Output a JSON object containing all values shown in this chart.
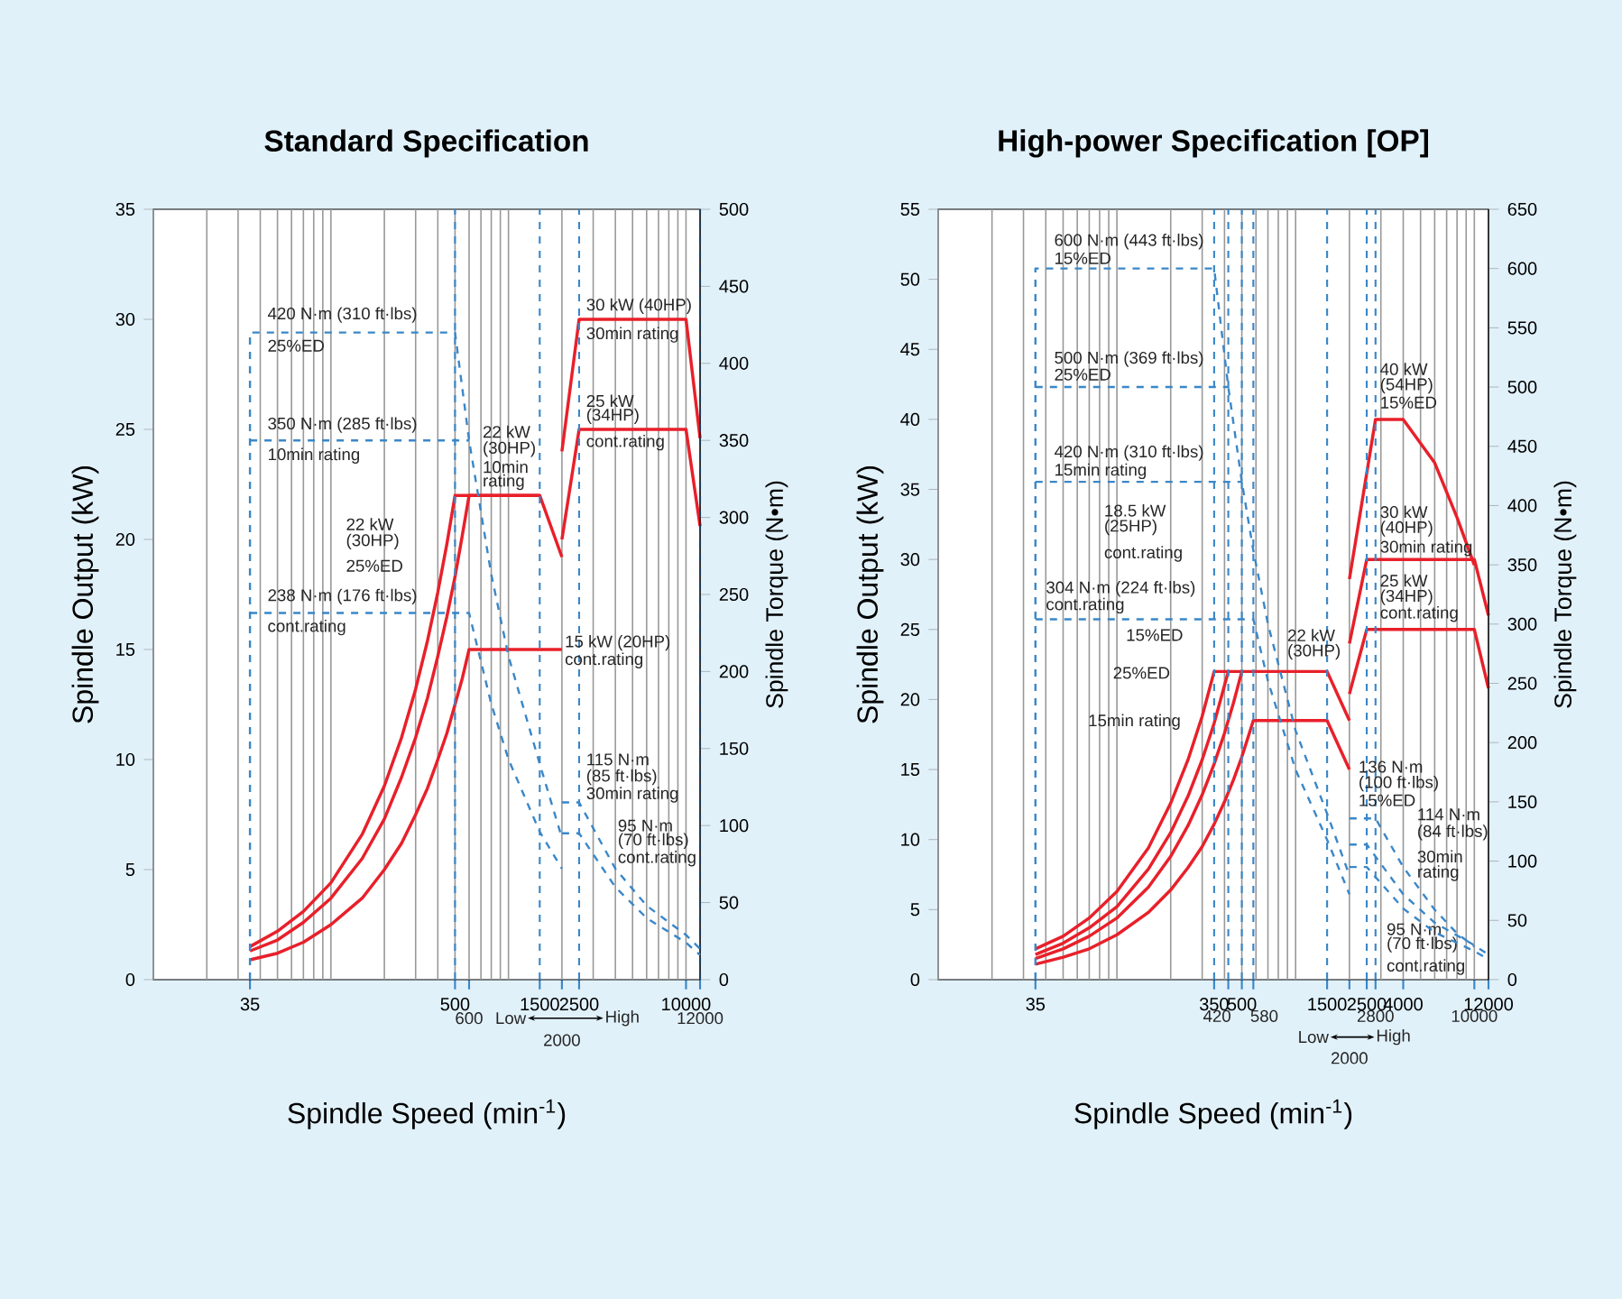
{
  "chart_data": [
    {
      "type": "line",
      "title": "Standard Specification",
      "xlabel": "Spindle Speed (min$^{-1}$)",
      "ylabel": "Spindle Output (kW)",
      "y2label": "Spindle Torque (N•m)",
      "log": "x",
      "grid": "x",
      "xlim": [
        10,
        12000
      ],
      "xticks": [
        35,
        500,
        {
          "value": 600,
          "label": null
        },
        1500,
        {
          "value": 2000,
          "label": null
        },
        2500,
        10000,
        {
          "value": 12000,
          "label": null
        }
      ],
      "ylim": [
        0,
        35
      ],
      "yticks": [
        0,
        5,
        10,
        15,
        20,
        25,
        30,
        35
      ],
      "y2lim": [
        0,
        500
      ],
      "y2ticks": [
        0,
        50,
        100,
        150,
        200,
        250,
        300,
        350,
        400,
        450,
        500
      ],
      "series": [
        {
          "color": "#e8202a",
          "x": [
            35,
            50,
            70,
            100,
            150,
            200,
            250,
            300,
            350,
            400,
            450,
            500,
            1500,
            2000
          ],
          "values": [
            1.5,
            2.2,
            3.1,
            4.4,
            6.6,
            8.8,
            11,
            13.2,
            15.4,
            17.6,
            19.8,
            22,
            22,
            19.2
          ]
        },
        {
          "color": "#e8202a",
          "x": [
            35,
            50,
            70,
            100,
            150,
            200,
            250,
            300,
            350,
            400,
            450,
            500,
            550,
            600,
            1500
          ],
          "values": [
            1.3,
            1.8,
            2.6,
            3.7,
            5.5,
            7.3,
            9.2,
            11,
            12.8,
            14.7,
            16.5,
            18.3,
            20.2,
            22,
            22
          ]
        },
        {
          "color": "#e8202a",
          "x": [
            35,
            50,
            70,
            100,
            150,
            200,
            250,
            300,
            350,
            400,
            450,
            500,
            550,
            600,
            2000
          ],
          "values": [
            0.9,
            1.2,
            1.7,
            2.5,
            3.7,
            5,
            6.2,
            7.5,
            8.7,
            10,
            11.2,
            12.5,
            13.7,
            15,
            15
          ]
        },
        {
          "color": "#e8202a",
          "x": [
            2000,
            2500,
            10000,
            12000
          ],
          "values": [
            24,
            30,
            30,
            24.6
          ]
        },
        {
          "color": "#e8202a",
          "x": [
            2000,
            2500,
            10000,
            12000
          ],
          "values": [
            20,
            25,
            25,
            20.6
          ]
        },
        {
          "color": "#3a87c8",
          "axis": "y2",
          "line_style": "dashed",
          "x": [
            35,
            35,
            500,
            600,
            800,
            1000,
            1500,
            2000
          ],
          "values": [
            0,
            420,
            420,
            350,
            263,
            210,
            140,
            92
          ]
        },
        {
          "color": "#3a87c8",
          "axis": "y2",
          "line_style": "dashed",
          "x": [
            35,
            600
          ],
          "values": [
            350,
            350
          ]
        },
        {
          "color": "#3a87c8",
          "axis": "y2",
          "line_style": "dashed",
          "x": [
            35,
            600,
            800,
            1000,
            1500,
            2000
          ],
          "values": [
            238,
            238,
            179,
            143,
            96,
            72
          ]
        },
        {
          "color": "#3a87c8",
          "axis": "y2",
          "line_style": "dashed",
          "x": [
            2000,
            2500,
            4000,
            6000,
            10000,
            12000
          ],
          "values": [
            115,
            115,
            72,
            48,
            29,
            20
          ]
        },
        {
          "color": "#3a87c8",
          "axis": "y2",
          "line_style": "dashed",
          "x": [
            2000,
            2500,
            4000,
            6000,
            10000,
            12000
          ],
          "values": [
            95,
            95,
            60,
            40,
            24,
            16
          ]
        }
      ],
      "ref_lines": [
        {
          "axis": "x",
          "value": 500,
          "color": "#3a87c8",
          "line_style": "dashed"
        },
        {
          "axis": "x",
          "value": 1500,
          "color": "#3a87c8",
          "line_style": "dashed"
        },
        {
          "axis": "x",
          "value": 2500,
          "color": "#3a87c8",
          "line_style": "dashed"
        },
        {
          "axis": "x",
          "value": 12000,
          "color": "#3a87c8",
          "line_style": "dashed"
        }
      ],
      "annotations": [
        "420 N·m (310 ft·lbs)",
        "25%ED",
        "350 N·m (285 ft·lbs)",
        "10min rating",
        "238 N·m (176 ft·lbs)",
        "cont.rating",
        "22 kW",
        "(30HP)",
        "25%ED",
        "22 kW",
        "(30HP)",
        "10min",
        "rating",
        "30 kW (40HP)",
        "30min rating",
        "25 kW",
        "(34HP)",
        "cont.rating",
        "15 kW (20HP)",
        "cont.rating",
        "115 N·m",
        "(85 ft·lbs)",
        "30min rating",
        "95 N·m",
        "(70 ft·lbs)",
        "cont.rating",
        "Low",
        "High",
        "600",
        "12000",
        "2000"
      ]
    },
    {
      "type": "line",
      "title": "High-power Specification [OP]",
      "xlabel": "Spindle Speed (min$^{-1}$)",
      "ylabel": "Spindle Output (kW)",
      "y2label": "Spindle Torque (N•m)",
      "log": "x",
      "grid": "x",
      "xlim": [
        10,
        12000
      ],
      "xticks": [
        35,
        350,
        {
          "value": 420,
          "label": null
        },
        500,
        {
          "value": 580,
          "label": null
        },
        1500,
        {
          "value": 2000,
          "label": null
        },
        2500,
        {
          "value": 2800,
          "label": null
        },
        4000,
        {
          "value": 10000,
          "label": null
        },
        12000
      ],
      "ylim": [
        0,
        55
      ],
      "yticks": [
        0,
        5,
        10,
        15,
        20,
        25,
        30,
        35,
        40,
        45,
        50,
        55
      ],
      "y2lim": [
        0,
        650
      ],
      "y2ticks": [
        0,
        50,
        100,
        150,
        200,
        250,
        300,
        350,
        400,
        450,
        500,
        550,
        600,
        650
      ],
      "series": [
        {
          "color": "#e8202a",
          "x": [
            35,
            50,
            70,
            100,
            150,
            200,
            250,
            300,
            350,
            1500,
            2000
          ],
          "values": [
            2.2,
            3.1,
            4.4,
            6.3,
            9.4,
            12.6,
            15.7,
            18.8,
            22,
            22,
            18.5
          ]
        },
        {
          "color": "#e8202a",
          "x": [
            35,
            50,
            70,
            100,
            150,
            200,
            250,
            300,
            350,
            420
          ],
          "values": [
            1.8,
            2.6,
            3.7,
            5.2,
            7.9,
            10.5,
            13.1,
            15.7,
            18.3,
            22
          ]
        },
        {
          "color": "#e8202a",
          "x": [
            35,
            50,
            70,
            100,
            150,
            200,
            250,
            300,
            350,
            400,
            450,
            500
          ],
          "values": [
            1.5,
            2.2,
            3.1,
            4.4,
            6.6,
            8.8,
            11,
            13.2,
            15.4,
            17.6,
            19.8,
            22
          ]
        },
        {
          "color": "#e8202a",
          "x": [
            35,
            50,
            70,
            100,
            150,
            200,
            250,
            300,
            350,
            400,
            450,
            500,
            580,
            1500,
            2000
          ],
          "values": [
            1.1,
            1.6,
            2.2,
            3.2,
            4.8,
            6.4,
            8,
            9.5,
            11.1,
            12.7,
            14.3,
            15.9,
            18.5,
            18.5,
            15
          ]
        },
        {
          "color": "#e8202a",
          "x": [
            2000,
            2800,
            4000,
            6000,
            8000,
            10000
          ],
          "values": [
            28.6,
            40,
            40,
            36.9,
            33,
            29.6
          ]
        },
        {
          "color": "#e8202a",
          "x": [
            2000,
            2500,
            10000,
            12000
          ],
          "values": [
            24,
            30,
            30,
            26
          ]
        },
        {
          "color": "#e8202a",
          "x": [
            2000,
            2500,
            10000,
            12000
          ],
          "values": [
            20.4,
            25,
            25,
            20.8
          ]
        },
        {
          "color": "#3a87c8",
          "axis": "y2",
          "line_style": "dashed",
          "x": [
            35,
            35,
            350,
            420,
            500,
            580,
            700,
            1000,
            1500,
            2000
          ],
          "values": [
            0,
            600,
            600,
            500,
            420,
            362,
            300,
            210,
            140,
            88
          ]
        },
        {
          "color": "#3a87c8",
          "axis": "y2",
          "line_style": "dashed",
          "x": [
            35,
            420
          ],
          "values": [
            500,
            500
          ]
        },
        {
          "color": "#3a87c8",
          "axis": "y2",
          "line_style": "dashed",
          "x": [
            35,
            500
          ],
          "values": [
            420,
            420
          ]
        },
        {
          "color": "#3a87c8",
          "axis": "y2",
          "line_style": "dashed",
          "x": [
            35,
            580,
            700,
            1000,
            1500,
            2000
          ],
          "values": [
            304,
            304,
            252,
            177,
            118,
            72
          ]
        },
        {
          "color": "#3a87c8",
          "axis": "y2",
          "line_style": "dashed",
          "x": [
            2000,
            2800,
            4000,
            6000,
            8000,
            10000
          ],
          "values": [
            136,
            136,
            95,
            59,
            39,
            28
          ]
        },
        {
          "color": "#3a87c8",
          "axis": "y2",
          "line_style": "dashed",
          "x": [
            2000,
            2500,
            4000,
            6000,
            10000,
            12000
          ],
          "values": [
            114,
            114,
            72,
            48,
            29,
            21
          ]
        },
        {
          "color": "#3a87c8",
          "axis": "y2",
          "line_style": "dashed",
          "x": [
            2000,
            2500,
            4000,
            6000,
            10000,
            12000
          ],
          "values": [
            95,
            95,
            60,
            40,
            24,
            17
          ]
        }
      ],
      "ref_lines": [
        {
          "axis": "x",
          "value": 350,
          "color": "#3a87c8",
          "line_style": "dashed"
        },
        {
          "axis": "x",
          "value": 420,
          "color": "#3a87c8",
          "line_style": "dashed"
        },
        {
          "axis": "x",
          "value": 500,
          "color": "#3a87c8",
          "line_style": "dashed"
        },
        {
          "axis": "x",
          "value": 580,
          "color": "#3a87c8",
          "line_style": "dashed"
        },
        {
          "axis": "x",
          "value": 1500,
          "color": "#3a87c8",
          "line_style": "dashed"
        },
        {
          "axis": "x",
          "value": 2500,
          "color": "#3a87c8",
          "line_style": "dashed"
        },
        {
          "axis": "x",
          "value": 2800,
          "color": "#3a87c8",
          "line_style": "dashed"
        }
      ],
      "annotations": [
        "600 N·m (443 ft·lbs)",
        "15%ED",
        "500 N·m (369 ft·lbs)",
        "25%ED",
        "420 N·m (310 ft·lbs)",
        "15min rating",
        "18.5 kW",
        "(25HP)",
        "cont.rating",
        "304 N·m (224 ft·lbs)",
        "cont.rating",
        "15%ED",
        "25%ED",
        "15min rating",
        "22 kW",
        "(30HP)",
        "40 kW",
        "(54HP)",
        "15%ED",
        "30 kW",
        "(40HP)",
        "30min rating",
        "25 kW",
        "(34HP)",
        "cont.rating",
        "136 N·m",
        "(100 ft·lbs)",
        "15%ED",
        "114 N·m",
        "(84 ft·lbs)",
        "30min",
        "rating",
        "95 N·m",
        "(70 ft·lbs)",
        "cont.rating",
        "Low",
        "High",
        "420",
        "580",
        "2800",
        "10000",
        "2000"
      ]
    }
  ]
}
